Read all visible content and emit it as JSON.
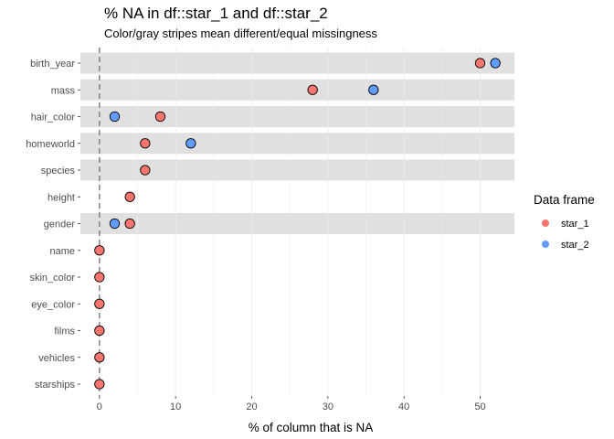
{
  "chart_data": {
    "type": "scatter",
    "title": "% NA in df::star_1 and df::star_2",
    "subtitle": "Color/gray stripes mean different/equal missingness",
    "xlabel": "% of column that is NA",
    "ylabel": "",
    "xlim": [
      -2.5,
      54.5
    ],
    "x_ticks": [
      0,
      10,
      20,
      30,
      40,
      50
    ],
    "x_tick_labels": [
      "0",
      "10",
      "20",
      "30",
      "40",
      "50"
    ],
    "grid": true,
    "reference_line": {
      "x": 0,
      "style": "dashed"
    },
    "categories": [
      "birth_year",
      "mass",
      "hair_color",
      "homeworld",
      "species",
      "height",
      "gender",
      "name",
      "skin_color",
      "eye_color",
      "films",
      "vehicles",
      "starships"
    ],
    "stripe_rows": [
      "birth_year",
      "mass",
      "hair_color",
      "homeworld",
      "species",
      "gender"
    ],
    "series": [
      {
        "name": "star_1",
        "color": "#F8766D",
        "values": [
          50,
          28,
          8,
          6,
          6,
          4,
          4,
          0,
          0,
          0,
          0,
          0,
          0
        ]
      },
      {
        "name": "star_2",
        "color": "#619CFF",
        "values": [
          52,
          36,
          2,
          12,
          null,
          null,
          2,
          null,
          null,
          null,
          null,
          null,
          null
        ]
      }
    ],
    "legend": {
      "title": "Data frame",
      "position": "right"
    }
  }
}
